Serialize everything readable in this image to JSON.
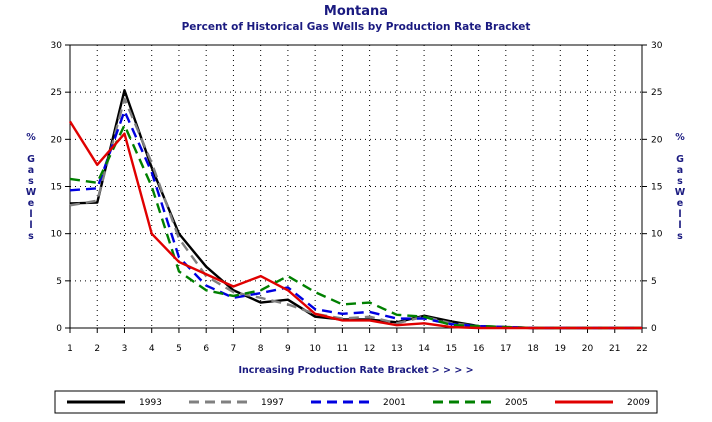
{
  "chart_data": {
    "type": "line",
    "title": "Montana",
    "subtitle": "Percent of Historical Gas Wells by Production Rate Bracket",
    "xlabel": "Increasing Production Rate Bracket > > > >",
    "ylabel_left": "% Gas Wells",
    "ylabel_right": "% Gas Wells",
    "ylim": [
      0,
      30
    ],
    "yticks": [
      0,
      5,
      10,
      15,
      20,
      25,
      30
    ],
    "grid": true,
    "legend_position": "bottom",
    "x": [
      1,
      2,
      3,
      4,
      5,
      6,
      7,
      8,
      9,
      10,
      11,
      12,
      13,
      14,
      15,
      16,
      17,
      18,
      19,
      20,
      21,
      22
    ],
    "series": [
      {
        "name": "1993",
        "color": "#000000",
        "dash": "solid",
        "values": [
          13.2,
          13.3,
          25.2,
          17.0,
          10.0,
          6.5,
          4.0,
          2.7,
          3.0,
          1.2,
          0.9,
          0.9,
          0.6,
          1.3,
          0.7,
          0.2,
          0.1,
          0.0,
          0.0,
          0.0,
          0.0,
          0.0
        ]
      },
      {
        "name": "1997",
        "color": "#808080",
        "dash": "dashed",
        "values": [
          13.0,
          13.5,
          24.3,
          17.5,
          9.5,
          5.5,
          3.8,
          3.2,
          2.5,
          1.5,
          1.0,
          1.2,
          0.5,
          1.2,
          0.5,
          0.2,
          0.1,
          0.0,
          0.0,
          0.0,
          0.0,
          0.0
        ]
      },
      {
        "name": "2001",
        "color": "#0000e0",
        "dash": "dashed",
        "values": [
          14.6,
          14.8,
          23.0,
          16.5,
          7.5,
          4.5,
          3.2,
          3.7,
          4.3,
          2.0,
          1.5,
          1.7,
          1.0,
          1.0,
          0.4,
          0.2,
          0.1,
          0.0,
          0.0,
          0.0,
          0.0,
          0.0
        ]
      },
      {
        "name": "2005",
        "color": "#008000",
        "dash": "dashed",
        "values": [
          15.8,
          15.4,
          21.5,
          15.0,
          6.0,
          4.0,
          3.4,
          4.0,
          5.5,
          3.8,
          2.5,
          2.7,
          1.4,
          1.2,
          0.3,
          0.2,
          0.1,
          0.0,
          0.0,
          0.0,
          0.0,
          0.0
        ]
      },
      {
        "name": "2009",
        "color": "#e00000",
        "dash": "solid",
        "values": [
          21.9,
          17.3,
          20.6,
          10.0,
          7.0,
          5.7,
          4.4,
          5.5,
          4.0,
          1.5,
          0.8,
          0.8,
          0.3,
          0.5,
          0.1,
          0.0,
          0.0,
          0.0,
          0.0,
          0.0,
          0.0,
          0.0
        ]
      }
    ]
  }
}
